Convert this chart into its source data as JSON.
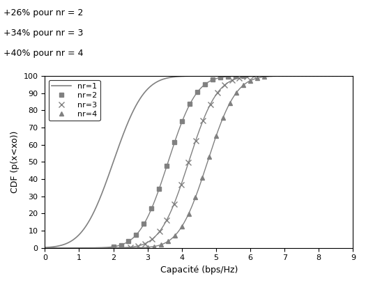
{
  "title": "",
  "xlabel": "Capacité (bps/Hz)",
  "ylabel": "CDF (p(x<xo))",
  "xlim": [
    0,
    9
  ],
  "ylim": [
    0,
    100
  ],
  "xticks": [
    0,
    1,
    2,
    3,
    4,
    5,
    6,
    7,
    8,
    9
  ],
  "yticks": [
    0,
    10,
    20,
    30,
    40,
    50,
    60,
    70,
    80,
    90,
    100
  ],
  "text_annotations": [
    "+26% pour nr = 2",
    "+34% pour nr = 3",
    "+40% pour nr = 4"
  ],
  "series": [
    {
      "label": "nr=1",
      "mean": 2.0,
      "std": 0.7,
      "color": "gray",
      "linestyle": "-",
      "marker": null,
      "markersize": 5
    },
    {
      "label": "nr=2",
      "mean": 3.6,
      "std": 0.65,
      "color": "gray",
      "linestyle": "-",
      "marker": "s",
      "markersize": 5
    },
    {
      "label": "nr=3",
      "mean": 4.2,
      "std": 0.65,
      "color": "gray",
      "linestyle": "-",
      "marker": "x",
      "markersize": 6
    },
    {
      "label": "nr=4",
      "mean": 4.75,
      "std": 0.65,
      "color": "gray",
      "linestyle": "-",
      "marker": "^",
      "markersize": 5
    }
  ],
  "background_color": "#ffffff",
  "dotted_line_y": 100,
  "dotted_line_x_start": 5.5,
  "dotted_line_x_end": 9
}
